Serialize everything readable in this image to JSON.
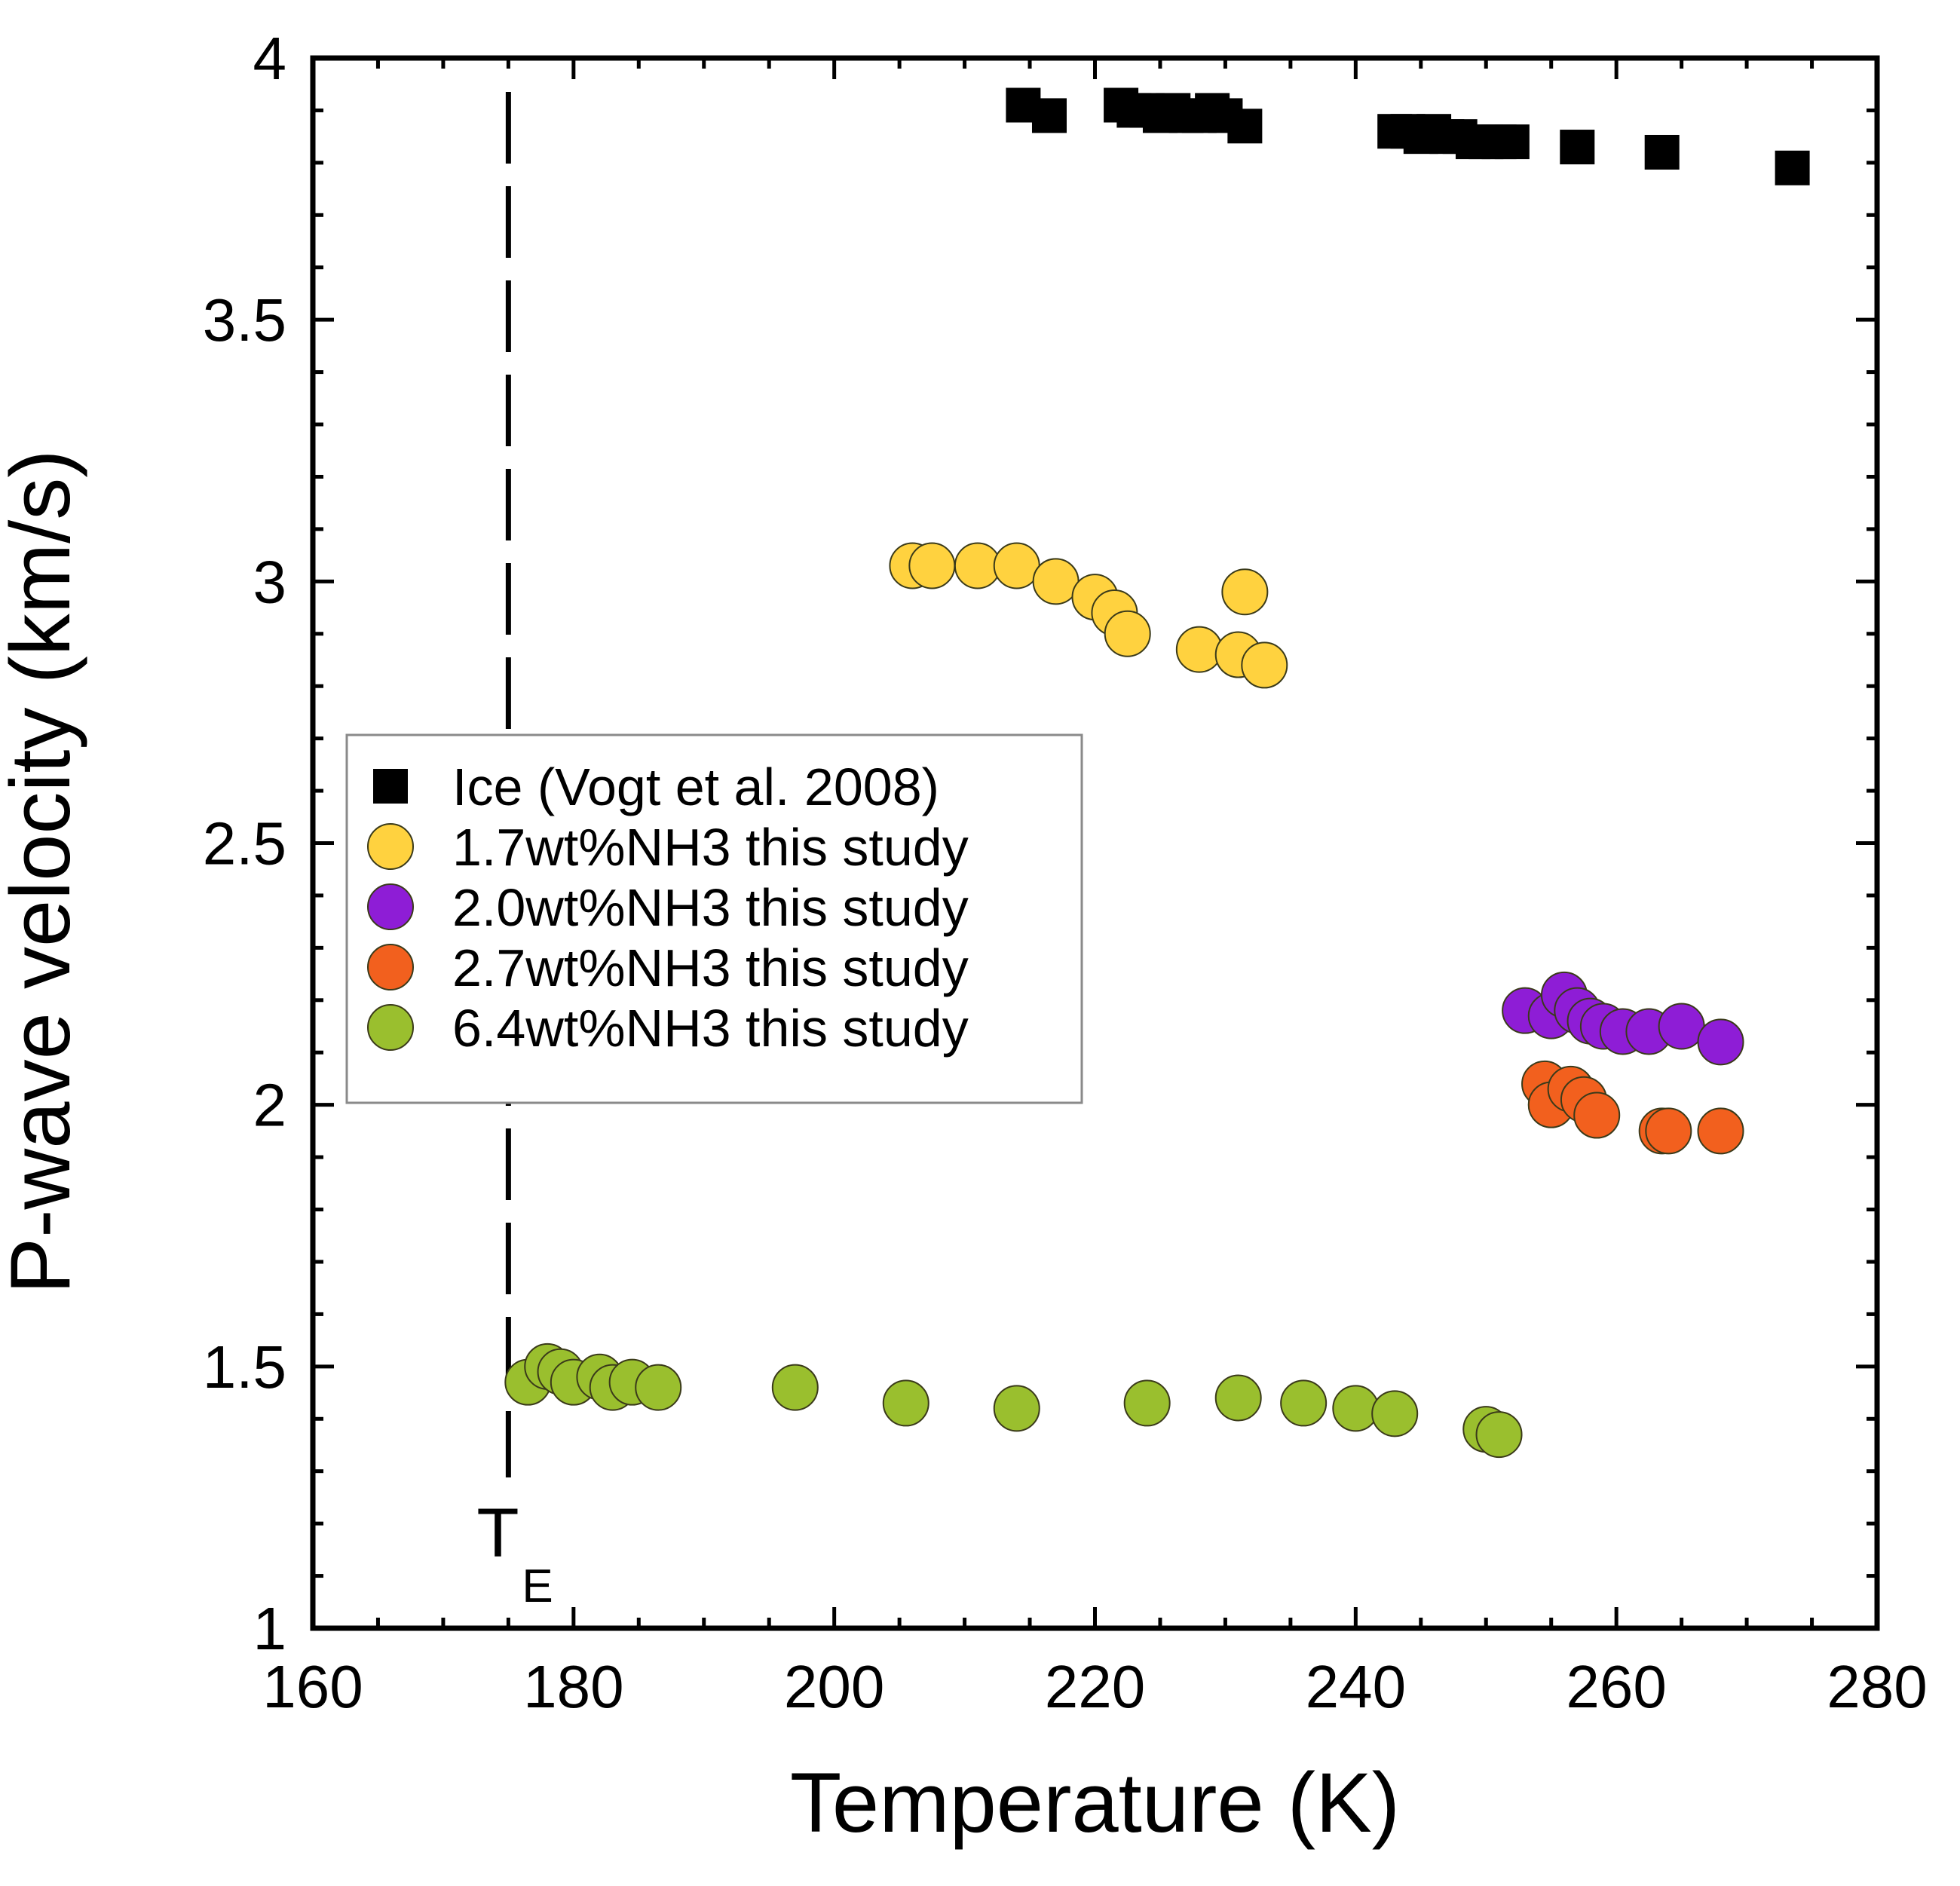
{
  "chart_data": {
    "type": "scatter",
    "title": "",
    "xlabel": "Temperature (K)",
    "ylabel": "P-wave velocity (km/s)",
    "xlim": [
      160,
      280
    ],
    "ylim": [
      1,
      4
    ],
    "x_ticks": [
      160,
      180,
      200,
      220,
      240,
      260,
      280
    ],
    "x_tick_labels": [
      "160",
      "180",
      "200",
      "220",
      "240",
      "260",
      "280"
    ],
    "y_ticks": [
      1,
      1.5,
      2,
      2.5,
      3,
      3.5,
      4
    ],
    "y_tick_labels": [
      "1",
      "1.5",
      "2",
      "2.5",
      "3",
      "3.5",
      "4"
    ],
    "grid": false,
    "legend_position": "middle-left",
    "annotation": {
      "label_main": "T",
      "label_sub": "E",
      "x": 175,
      "style": "dashed vertical line"
    },
    "series": [
      {
        "name": "Ice (Vogt et al. 2008)",
        "marker": "square",
        "color": "#000000",
        "points": [
          [
            214.5,
            3.91
          ],
          [
            216.5,
            3.89
          ],
          [
            222,
            3.91
          ],
          [
            223,
            3.9
          ],
          [
            224,
            3.9
          ],
          [
            225,
            3.89
          ],
          [
            226,
            3.9
          ],
          [
            227,
            3.89
          ],
          [
            228,
            3.89
          ],
          [
            229,
            3.9
          ],
          [
            230,
            3.89
          ],
          [
            231.5,
            3.87
          ],
          [
            243,
            3.86
          ],
          [
            244,
            3.86
          ],
          [
            245,
            3.85
          ],
          [
            246,
            3.86
          ],
          [
            247,
            3.85
          ],
          [
            248,
            3.85
          ],
          [
            249,
            3.84
          ],
          [
            250,
            3.84
          ],
          [
            251,
            3.84
          ],
          [
            252,
            3.84
          ],
          [
            257,
            3.83
          ],
          [
            263.5,
            3.82
          ],
          [
            273.5,
            3.79
          ]
        ]
      },
      {
        "name": "1.7wt%NH3 this study",
        "marker": "circle",
        "color": "#FFD23F",
        "points": [
          [
            206,
            3.03
          ],
          [
            207.5,
            3.03
          ],
          [
            211,
            3.03
          ],
          [
            214,
            3.03
          ],
          [
            217,
            3.0
          ],
          [
            220,
            2.97
          ],
          [
            221.5,
            2.94
          ],
          [
            222.5,
            2.9
          ],
          [
            228,
            2.87
          ],
          [
            231,
            2.86
          ],
          [
            231.5,
            2.98
          ],
          [
            233,
            2.84
          ]
        ]
      },
      {
        "name": "2.0wt%NH3 this study",
        "marker": "circle",
        "color": "#8E1DD6",
        "points": [
          [
            253,
            2.18
          ],
          [
            255,
            2.17
          ],
          [
            256,
            2.21
          ],
          [
            257,
            2.18
          ],
          [
            258,
            2.16
          ],
          [
            259,
            2.15
          ],
          [
            260.5,
            2.14
          ],
          [
            262.5,
            2.14
          ],
          [
            265,
            2.15
          ],
          [
            268,
            2.12
          ]
        ]
      },
      {
        "name": "2.7wt%NH3 this study",
        "marker": "circle",
        "color": "#F2601E",
        "points": [
          [
            254.5,
            2.04
          ],
          [
            255,
            2.0
          ],
          [
            256.5,
            2.03
          ],
          [
            257.5,
            2.01
          ],
          [
            258.5,
            1.98
          ],
          [
            263.5,
            1.95
          ],
          [
            264,
            1.95
          ],
          [
            268,
            1.95
          ]
        ]
      },
      {
        "name": "6.4wt%NH3 this study",
        "marker": "circle",
        "color": "#9ABF2E",
        "points": [
          [
            176.5,
            1.47
          ],
          [
            178,
            1.5
          ],
          [
            179,
            1.49
          ],
          [
            180,
            1.47
          ],
          [
            182,
            1.48
          ],
          [
            183,
            1.46
          ],
          [
            184.5,
            1.47
          ],
          [
            186.5,
            1.46
          ],
          [
            197,
            1.46
          ],
          [
            205.5,
            1.43
          ],
          [
            214,
            1.42
          ],
          [
            224,
            1.43
          ],
          [
            231,
            1.44
          ],
          [
            236,
            1.43
          ],
          [
            240,
            1.42
          ],
          [
            243,
            1.41
          ],
          [
            250,
            1.38
          ],
          [
            251,
            1.37
          ]
        ]
      }
    ]
  }
}
